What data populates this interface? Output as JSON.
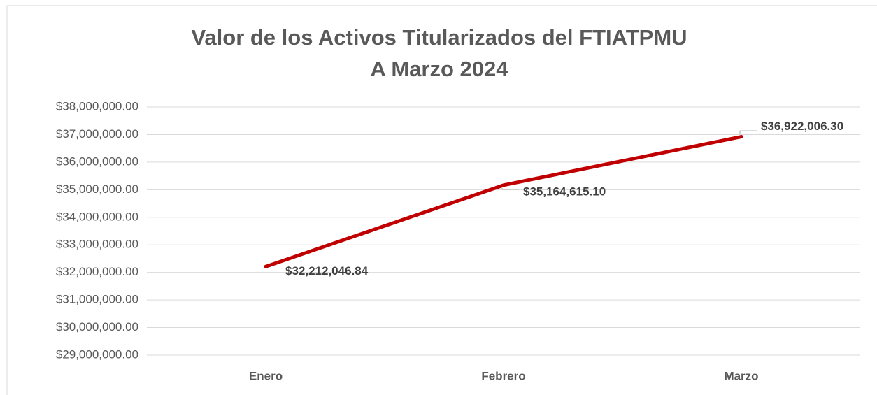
{
  "chart_data": {
    "type": "line",
    "title": "Valor de los Activos Titularizados del FTIATPMU",
    "subtitle": "A Marzo 2024",
    "categories": [
      "Enero",
      "Febrero",
      "Marzo"
    ],
    "series": [
      {
        "name": "Valor",
        "color": "#c00000",
        "values": [
          32212046.84,
          35164615.1,
          36922006.3
        ],
        "value_labels": [
          "$32,212,046.84",
          "$35,164,615.10",
          "$36,922,006.30"
        ]
      }
    ],
    "ylim": [
      29000000,
      38000000
    ],
    "yticks": [
      {
        "value": 29000000,
        "label": "$29,000,000.00"
      },
      {
        "value": 30000000,
        "label": "$30,000,000.00"
      },
      {
        "value": 31000000,
        "label": "$31,000,000.00"
      },
      {
        "value": 32000000,
        "label": "$32,000,000.00"
      },
      {
        "value": 33000000,
        "label": "$33,000,000.00"
      },
      {
        "value": 34000000,
        "label": "$34,000,000.00"
      },
      {
        "value": 35000000,
        "label": "$35,000,000.00"
      },
      {
        "value": 36000000,
        "label": "$36,000,000.00"
      },
      {
        "value": 37000000,
        "label": "$37,000,000.00"
      },
      {
        "value": 38000000,
        "label": "$38,000,000.00"
      }
    ],
    "grid": true
  }
}
